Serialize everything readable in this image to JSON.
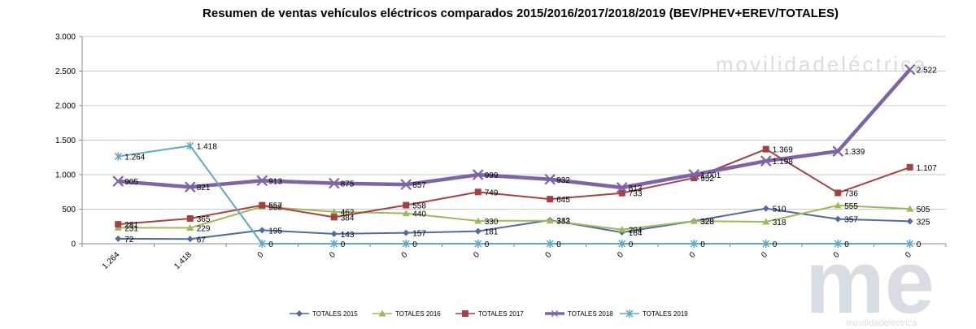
{
  "chart_data": {
    "type": "line",
    "title": "Resumen de ventas vehículos eléctricos comparados 2015/2016/2017/2018/2019  (BEV/PHEV+EREV/TOTALES)",
    "categories": [
      "1.264",
      "1.418",
      "0",
      "0",
      "0",
      "0",
      "0",
      "0",
      "0",
      "0",
      "0",
      "0"
    ],
    "ylim": [
      0,
      3000
    ],
    "yticks": [
      0,
      500,
      1000,
      1500,
      2000,
      2500,
      3000
    ],
    "ytick_labels": [
      "0",
      "500",
      "1.000",
      "1.500",
      "2.000",
      "2.500",
      "3.000"
    ],
    "grid": true,
    "legend_position": "bottom",
    "series": [
      {
        "name": "TOTALES 2015",
        "color": "#4f6ba6",
        "marker": "diamond",
        "values": [
          72,
          67,
          195,
          143,
          157,
          181,
          342,
          164,
          328,
          510,
          357,
          325
        ],
        "labels": [
          "72",
          "67",
          "195",
          "143",
          "157",
          "181",
          "342",
          "164",
          "328",
          "510",
          "357",
          "325"
        ]
      },
      {
        "name": "TOTALES 2016",
        "color": "#9bbb59",
        "marker": "triangle",
        "values": [
          231,
          229,
          538,
          462,
          440,
          330,
          333,
          204,
          328,
          318,
          555,
          505
        ],
        "labels": [
          "231",
          "229",
          "538",
          "462",
          "440",
          "330",
          "333",
          "204",
          "328",
          "318",
          "555",
          "505"
        ]
      },
      {
        "name": "TOTALES 2017",
        "color": "#a84040",
        "marker": "square",
        "values": [
          281,
          365,
          557,
          384,
          558,
          749,
          645,
          733,
          952,
          1369,
          736,
          1107
        ],
        "labels": [
          "281",
          "365",
          "557",
          "384",
          "558",
          "749",
          "645",
          "733",
          "952",
          "1.369",
          "736",
          "1.107"
        ]
      },
      {
        "name": "TOTALES 2018",
        "color": "#7e63a8",
        "marker": "x",
        "values": [
          905,
          821,
          913,
          875,
          857,
          999,
          932,
          813,
          1001,
          1198,
          1339,
          2522
        ],
        "labels": [
          "905",
          "821",
          "913",
          "875",
          "857",
          "999",
          "932",
          "813",
          "1.001",
          "1.198",
          "1.339",
          "2.522"
        ]
      },
      {
        "name": "TOTALES 2019",
        "color": "#5ea8c8",
        "marker": "star",
        "values": [
          1264,
          1418,
          0,
          0,
          0,
          0,
          0,
          0,
          0,
          0,
          0,
          0
        ],
        "labels": [
          "1.264",
          "1.418",
          "0",
          "0",
          "0",
          "0",
          "0",
          "0",
          "0",
          "0",
          "0",
          "0"
        ]
      }
    ]
  },
  "watermark": {
    "top_text": "movilidadeléctrica",
    "logo_text": "me",
    "bottom_text": "movilidadeléctrica"
  }
}
